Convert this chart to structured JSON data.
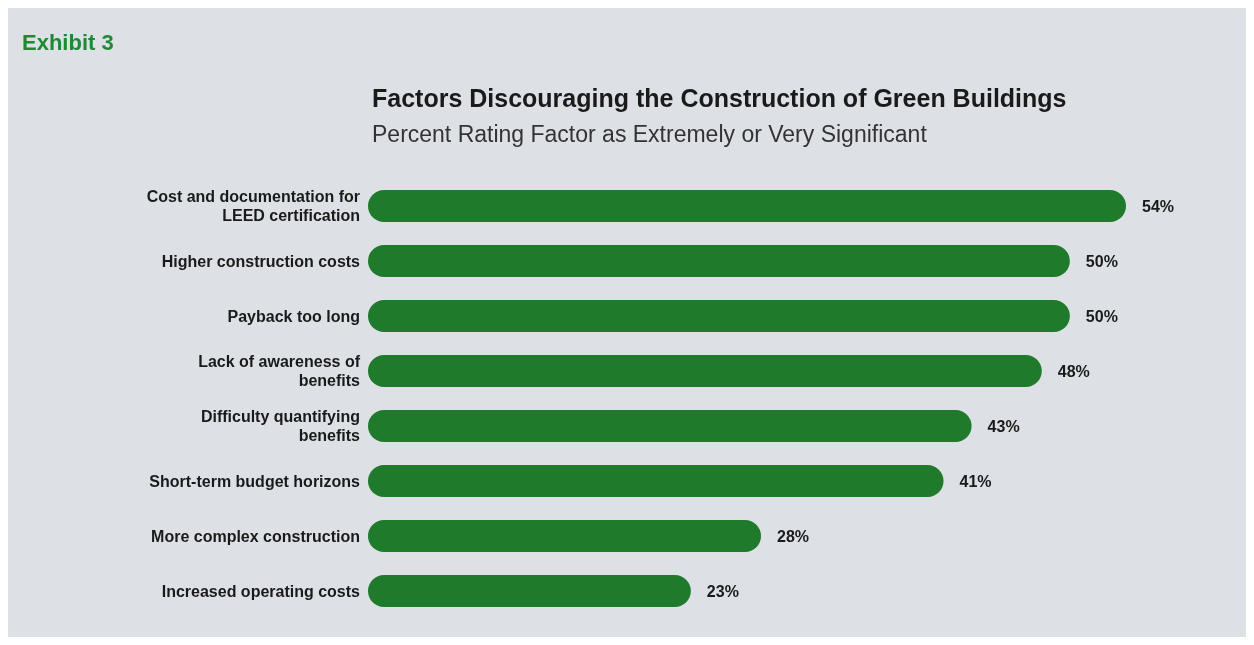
{
  "chart_data": {
    "type": "bar",
    "orientation": "horizontal",
    "title": "Factors Discouraging the Construction of Green Buildings",
    "subtitle": "Percent Rating Factor as Extremely or Very Significant",
    "annotations": [
      "Exhibit 3"
    ],
    "categories": [
      "Cost and documentation for LEED certification",
      "Higher construction costs",
      "Payback too long",
      "Lack of awareness of benefits",
      "Difficulty quantifying benefits",
      "Short-term budget horizons",
      "More complex construction",
      "Increased operating costs"
    ],
    "values": [
      54,
      50,
      50,
      48,
      43,
      41,
      28,
      23
    ],
    "value_labels": [
      "54%",
      "50%",
      "50%",
      "48%",
      "43%",
      "41%",
      "28%",
      "23%"
    ],
    "color": "#1f7a2c"
  }
}
